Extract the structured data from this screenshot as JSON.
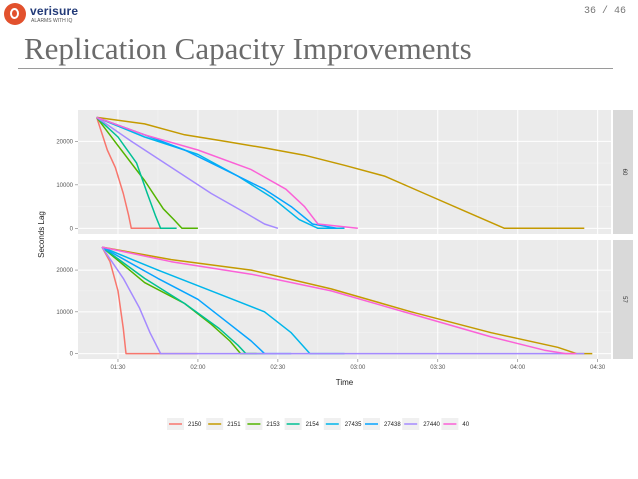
{
  "header": {
    "logo_brand": "verisure",
    "logo_tagline": "ALARMS WITH IQ",
    "page_number": "36 / 46",
    "title": "Replication Capacity Improvements"
  },
  "chart_data": {
    "type": "line",
    "xlabel": "Time",
    "ylabel": "Seconds Lag",
    "x_ticks": [
      "01:30",
      "02:00",
      "02:30",
      "03:00",
      "03:30",
      "04:00",
      "04:30"
    ],
    "xlim": [
      75,
      275
    ],
    "y_ticks": [
      0,
      10000,
      20000
    ],
    "ylim": [
      -1300,
      27200
    ],
    "grid": true,
    "legend_position": "bottom",
    "panels": [
      {
        "strip": "60",
        "series": [
          {
            "name": "2150",
            "color": "#f8766d",
            "x": [
              82,
              86,
              89,
              92,
              94,
              95,
              100,
              112
            ],
            "y": [
              25500,
              18000,
              14000,
              8000,
              3000,
              0,
              0,
              0
            ]
          },
          {
            "name": "2151",
            "color": "#c49a00",
            "x": [
              82,
              100,
              115,
              130,
              145,
              160,
              175,
              190,
              205,
              220,
              235,
              250,
              265
            ],
            "y": [
              25500,
              24000,
              21500,
              20000,
              18500,
              16800,
              14500,
              12000,
              8000,
              4000,
              0,
              0,
              0
            ]
          },
          {
            "name": "2153",
            "color": "#53b400",
            "x": [
              82,
              90,
              100,
              107,
              111,
              114,
              120
            ],
            "y": [
              25500,
              19000,
              11000,
              4500,
              2000,
              0,
              0
            ]
          },
          {
            "name": "2154",
            "color": "#00c094",
            "x": [
              82,
              90,
              97,
              101,
              104,
              106,
              112
            ],
            "y": [
              25500,
              21000,
              15000,
              8000,
              3000,
              0,
              0
            ]
          },
          {
            "name": "27435",
            "color": "#00b6eb",
            "x": [
              82,
              100,
              120,
              135,
              148,
              158,
              165,
              175
            ],
            "y": [
              25500,
              21000,
              17000,
              12000,
              7000,
              2000,
              0,
              0
            ]
          },
          {
            "name": "27438",
            "color": "#06a4ff",
            "x": [
              82,
              100,
              115,
              130,
              145,
              155,
              163,
              172
            ],
            "y": [
              25500,
              21500,
              18000,
              13500,
              9000,
              5000,
              1000,
              0
            ]
          },
          {
            "name": "27440",
            "color": "#a58aff",
            "x": [
              82,
              95,
              110,
              125,
              138,
              145,
              150
            ],
            "y": [
              25500,
              20000,
              14000,
              8000,
              3500,
              1000,
              0
            ]
          },
          {
            "name": "40",
            "color": "#fb61d7",
            "x": [
              82,
              100,
              120,
              140,
              153,
              160,
              165,
              180
            ],
            "y": [
              25500,
              21500,
              18000,
              13500,
              9000,
              5000,
              1000,
              0
            ]
          }
        ]
      },
      {
        "strip": "57",
        "series": [
          {
            "name": "2150",
            "color": "#f8766d",
            "x": [
              84,
              87,
              90,
              92,
              93,
              100,
              120
            ],
            "y": [
              25500,
              22000,
              15000,
              6000,
              0,
              0,
              0
            ]
          },
          {
            "name": "2151",
            "color": "#c49a00",
            "x": [
              84,
              110,
              140,
              170,
              200,
              230,
              255,
              262,
              268
            ],
            "y": [
              25500,
              22500,
              20000,
              15500,
              10000,
              5000,
              1500,
              0,
              0
            ]
          },
          {
            "name": "2153",
            "color": "#53b400",
            "x": [
              84,
              100,
              115,
              125,
              132,
              136,
              142
            ],
            "y": [
              25500,
              17000,
              12000,
              7000,
              3000,
              0,
              0
            ]
          },
          {
            "name": "2154",
            "color": "#00c094",
            "x": [
              84,
              100,
              115,
              128,
              135,
              138,
              145
            ],
            "y": [
              25500,
              18000,
              12000,
              6000,
              2000,
              0,
              0
            ]
          },
          {
            "name": "27435",
            "color": "#00b6eb",
            "x": [
              84,
              105,
              125,
              145,
              155,
              162,
              175
            ],
            "y": [
              25500,
              20000,
              15000,
              10000,
              5000,
              0,
              0
            ]
          },
          {
            "name": "27438",
            "color": "#06a4ff",
            "x": [
              84,
              105,
              120,
              132,
              140,
              145,
              155
            ],
            "y": [
              25500,
              18000,
              13000,
              7000,
              3000,
              0,
              0
            ]
          },
          {
            "name": "27440",
            "color": "#a58aff",
            "x": [
              84,
              92,
              98,
              102,
              106,
              120,
              265
            ],
            "y": [
              25500,
              18000,
              11000,
              5000,
              0,
              0,
              0
            ]
          },
          {
            "name": "40",
            "color": "#fb61d7",
            "x": [
              84,
              110,
              140,
              170,
              200,
              230,
              250,
              258,
              262
            ],
            "y": [
              25500,
              22000,
              19000,
              15000,
              9500,
              4000,
              800,
              0,
              0
            ]
          }
        ]
      }
    ]
  }
}
